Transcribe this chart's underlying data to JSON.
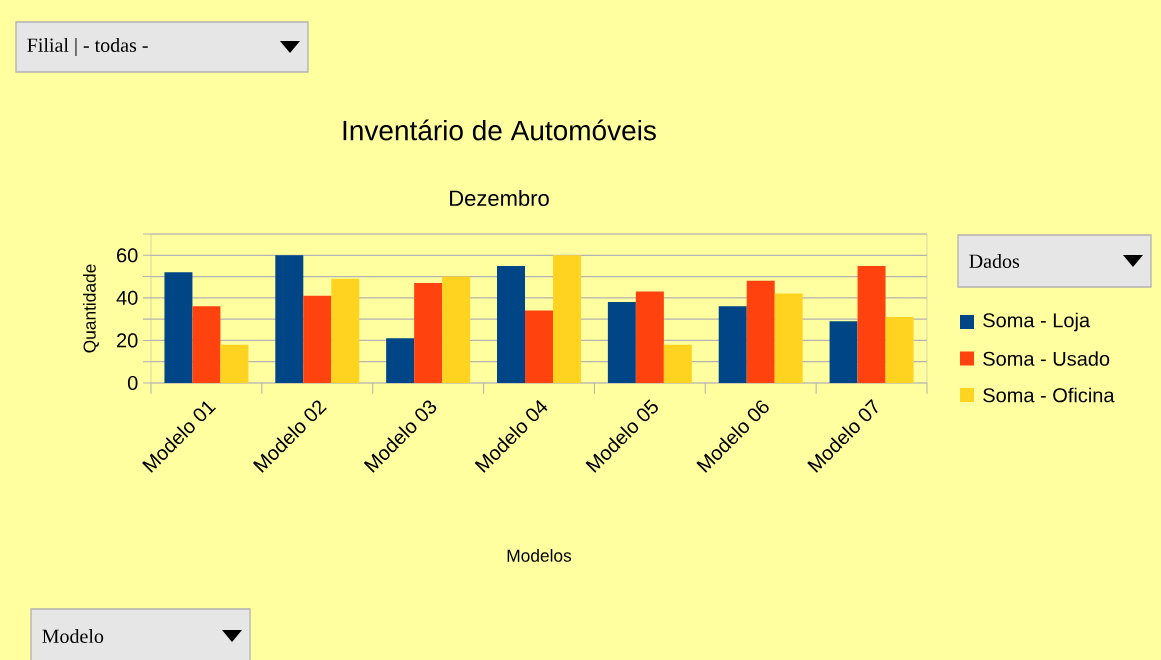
{
  "chart_data": {
    "type": "bar",
    "title": "Inventário de Automóveis",
    "subtitle": "Dezembro",
    "xlabel": "Modelos",
    "ylabel": "Quantidade",
    "categories": [
      "Modelo 01",
      "Modelo 02",
      "Modelo 03",
      "Modelo 04",
      "Modelo 05",
      "Modelo 06",
      "Modelo 07"
    ],
    "series": [
      {
        "name": "Soma - Loja",
        "color": "#004586",
        "values": [
          52,
          60,
          21,
          55,
          38,
          36,
          29
        ]
      },
      {
        "name": "Soma - Usado",
        "color": "#ff420e",
        "values": [
          36,
          41,
          47,
          34,
          43,
          48,
          55
        ]
      },
      {
        "name": "Soma - Oficina",
        "color": "#ffd320",
        "values": [
          18,
          49,
          50,
          60,
          18,
          42,
          31
        ]
      }
    ],
    "ylim": [
      0,
      70
    ],
    "yticks": [
      0,
      {
        "value": 10,
        "label": null
      },
      20,
      {
        "value": 30,
        "label": null
      },
      40,
      {
        "value": 50,
        "label": null
      },
      60,
      {
        "value": 70,
        "label": null
      }
    ],
    "grid": "y",
    "legend": "right",
    "annotations": [
      "Filial | - todas -",
      "Dados",
      "Modelo"
    ]
  }
}
